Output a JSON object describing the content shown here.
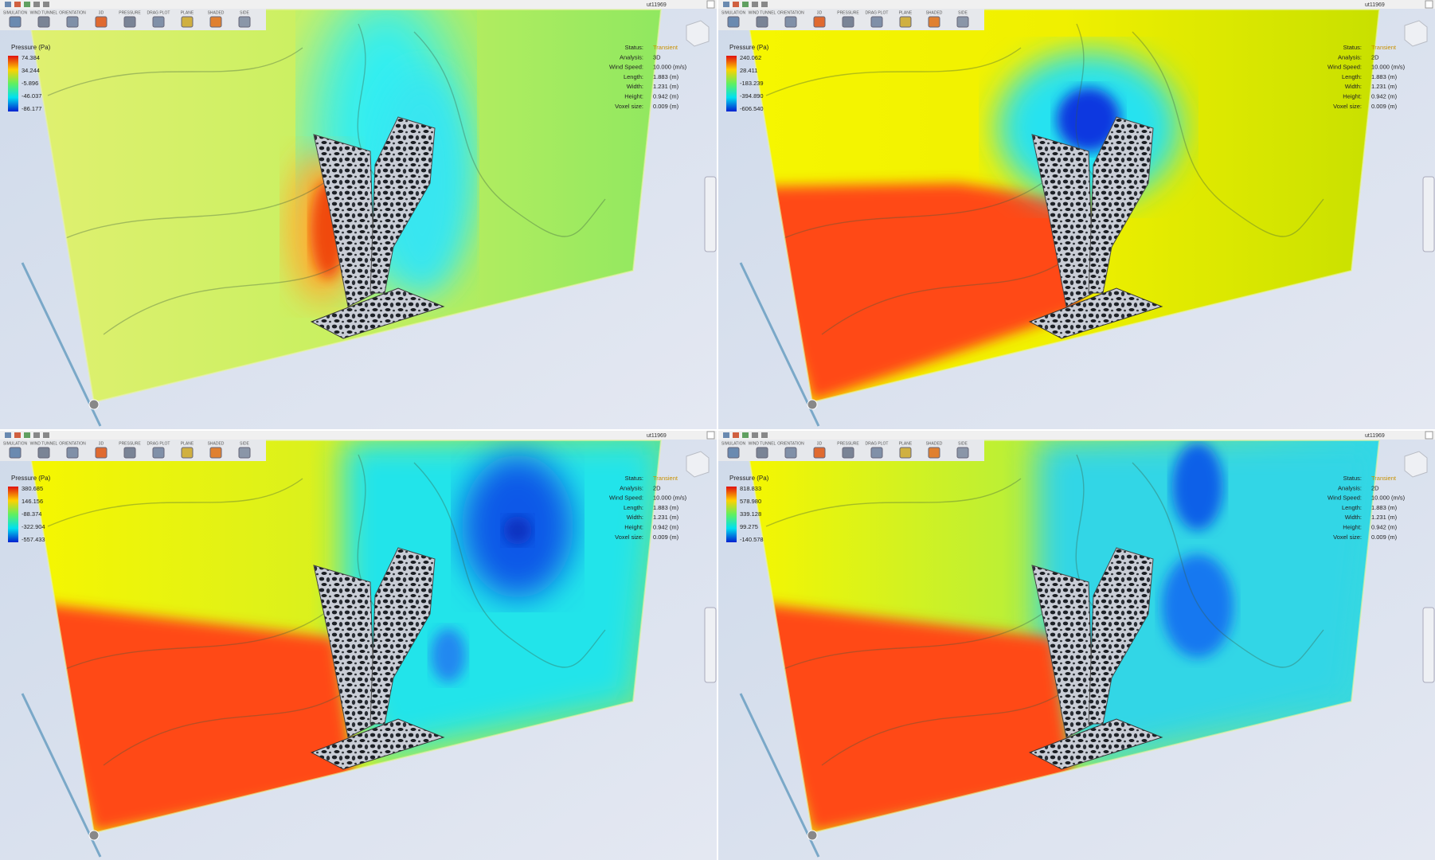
{
  "window_title": "ut11969",
  "toolbar_labels": [
    "SIMULATION",
    "WIND TUNNEL",
    "ORIENTATION",
    "3D",
    "PRESSURE",
    "DRAG PLOT",
    "PLANE",
    "SHADED",
    "SIDE"
  ],
  "legend_title": "Pressure (Pa)",
  "info_labels": [
    "Status:",
    "Analysis:",
    "Wind Speed:",
    "Length:",
    "Width:",
    "Height:",
    "Voxel size:"
  ],
  "panels": [
    {
      "legend_values": [
        "74.384",
        "34.244",
        "-5.896",
        "-46.037",
        "-86.177"
      ],
      "info_values": [
        "Transient",
        "3D",
        "10.000 (m/s)",
        "1.883 (m)",
        "1.231 (m)",
        "0.942 (m)",
        "0.009 (m)"
      ]
    },
    {
      "legend_values": [
        "240.062",
        "28.411",
        "-183.239",
        "-394.890",
        "-606.540"
      ],
      "info_values": [
        "Transient",
        "2D",
        "10.000 (m/s)",
        "1.883 (m)",
        "1.231 (m)",
        "0.942 (m)",
        "0.009 (m)"
      ]
    },
    {
      "legend_values": [
        "380.685",
        "146.156",
        "-88.374",
        "-322.904",
        "-557.433"
      ],
      "info_values": [
        "Transient",
        "2D",
        "10.000 (m/s)",
        "1.883 (m)",
        "1.231 (m)",
        "0.942 (m)",
        "0.009 (m)"
      ]
    },
    {
      "legend_values": [
        "818.833",
        "578.980",
        "339.128",
        "99.275",
        "-140.578"
      ],
      "info_values": [
        "Transient",
        "2D",
        "10.000 (m/s)",
        "1.883 (m)",
        "1.231 (m)",
        "0.942 (m)",
        "0.009 (m)"
      ]
    }
  ]
}
